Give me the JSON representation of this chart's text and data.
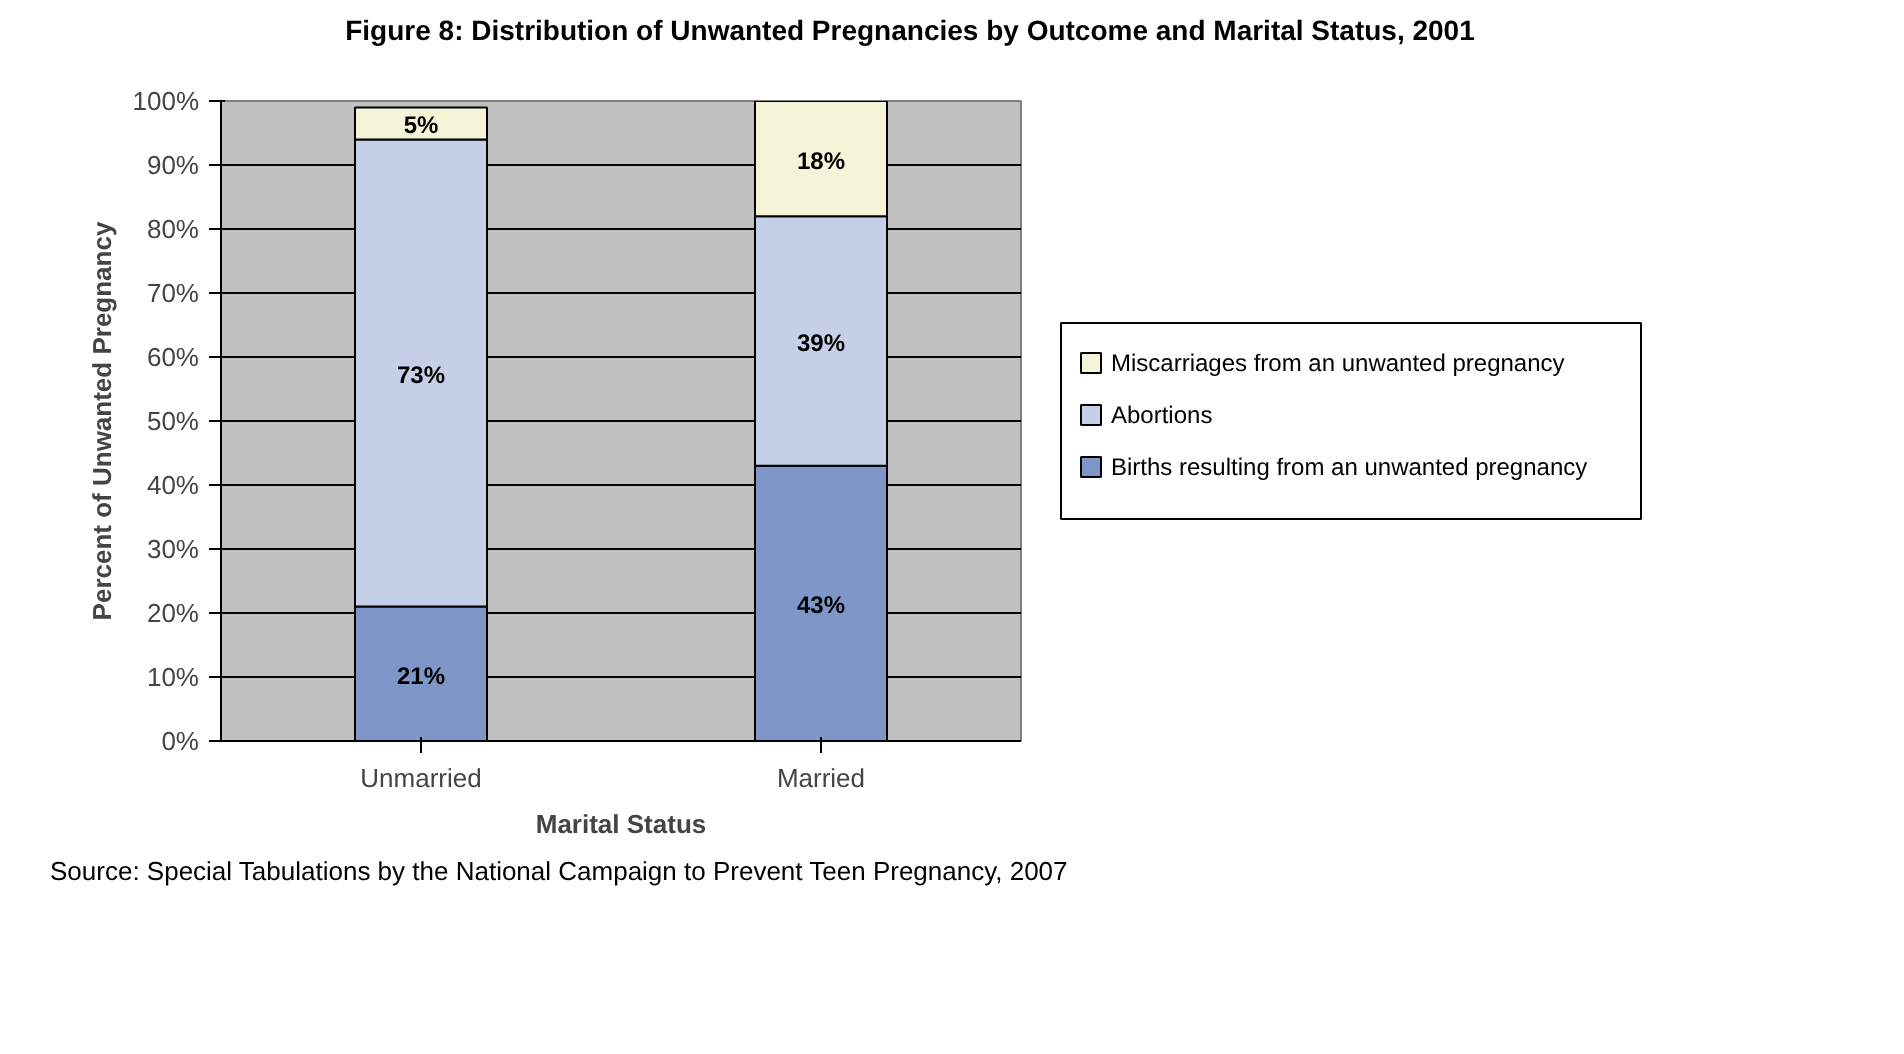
{
  "chart_data": {
    "type": "bar",
    "stacked": true,
    "title": "Figure 8: Distribution of Unwanted Pregnancies by Outcome and Marital Status, 2001",
    "xlabel": "Marital Status",
    "ylabel": "Percent of Unwanted Pregnancy",
    "categories": [
      "Unmarried",
      "Married"
    ],
    "series": [
      {
        "name": "Births resulting from an unwanted pregnancy",
        "color": "#7f96c8",
        "values": [
          21,
          43
        ],
        "value_labels": [
          "21%",
          "43%"
        ]
      },
      {
        "name": "Abortions",
        "color": "#c5d0e8",
        "values": [
          73,
          39
        ],
        "value_labels": [
          "73%",
          "39%"
        ]
      },
      {
        "name": "Miscarriages from an unwanted pregnancy",
        "color": "#f4f5d8",
        "values": [
          5,
          18
        ],
        "value_labels": [
          "5%",
          "18%"
        ]
      }
    ],
    "ylim": [
      0,
      100
    ],
    "yticks": [
      {
        "value": 0,
        "label": "0%"
      },
      {
        "value": 10,
        "label": "10%"
      },
      {
        "value": 20,
        "label": "20%"
      },
      {
        "value": 30,
        "label": "30%"
      },
      {
        "value": 40,
        "label": "40%"
      },
      {
        "value": 50,
        "label": "50%"
      },
      {
        "value": 60,
        "label": "60%"
      },
      {
        "value": 70,
        "label": "70%"
      },
      {
        "value": 80,
        "label": "80%"
      },
      {
        "value": 90,
        "label": "90%"
      },
      {
        "value": 100,
        "label": "100%"
      }
    ],
    "grid": "y",
    "legend": "right",
    "annotations": [
      "Source: Special Tabulations by the National Campaign to Prevent Teen Pregnancy, 2007"
    ]
  }
}
